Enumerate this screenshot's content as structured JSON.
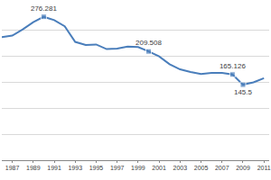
{
  "chart_data": {
    "type": "line",
    "x": [
      1986,
      1987,
      1988,
      1989,
      1990,
      1991,
      1992,
      1993,
      1994,
      1995,
      1996,
      1997,
      1998,
      1999,
      2000,
      2001,
      2002,
      2003,
      2004,
      2005,
      2006,
      2007,
      2008,
      2009,
      2010,
      2011
    ],
    "values": [
      237,
      240,
      252,
      266,
      276.281,
      270,
      258,
      228,
      222,
      223,
      214,
      215,
      219,
      218,
      209.508,
      200,
      185,
      175,
      170,
      166,
      168,
      168,
      165.126,
      145.5,
      150,
      158
    ],
    "value_labels": [
      null,
      null,
      null,
      null,
      "276.281",
      null,
      null,
      null,
      null,
      null,
      null,
      null,
      null,
      null,
      "209.508",
      null,
      null,
      null,
      null,
      null,
      null,
      null,
      "165.126",
      "145.5",
      null,
      null
    ],
    "color": "#4a7ebb",
    "marker": "square",
    "data_labels": true,
    "xlim": [
      1986,
      2011.5
    ],
    "xticks": [
      1987,
      1989,
      1991,
      1993,
      1995,
      1997,
      1999,
      2001,
      2003,
      2005,
      2007,
      2009,
      2011
    ],
    "ylim": [
      0,
      300
    ],
    "yticks": [
      0,
      50,
      100,
      150,
      200,
      250,
      300
    ],
    "grid": true,
    "tick_labels": "x"
  }
}
